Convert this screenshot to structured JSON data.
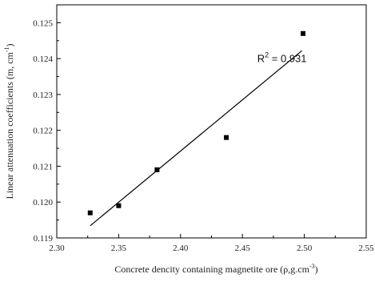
{
  "chart_data": {
    "type": "scatter",
    "title": "",
    "xlabel": "Concrete dencity containing magnetite ore (ρ,g.cm",
    "xlabel_sup": "-3",
    "xlabel_end": ")",
    "ylabel": "Linear attenuation coefficients (m, cm",
    "ylabel_sup": "-1",
    "ylabel_end": ")",
    "xlim": [
      2.3,
      2.55
    ],
    "ylim": [
      0.119,
      0.1255
    ],
    "xticks": [
      2.3,
      2.35,
      2.4,
      2.45,
      2.5,
      2.55
    ],
    "xtick_labels": [
      "2.30",
      "2.35",
      "2.40",
      "2.45",
      "2.50",
      "2.55"
    ],
    "yticks": [
      0.119,
      0.12,
      0.121,
      0.122,
      0.123,
      0.124,
      0.125
    ],
    "ytick_labels": [
      "0.119",
      "0.120",
      "0.121",
      "0.122",
      "0.123",
      "0.124",
      "0.125"
    ],
    "grid": false,
    "series": [
      {
        "x": [
          2.327,
          2.35,
          2.381,
          2.437,
          2.499
        ],
        "y": [
          0.1197,
          0.1199,
          0.1209,
          0.1218,
          0.1247
        ],
        "marker": "square",
        "color": "#000000"
      }
    ],
    "fit_line": {
      "x": [
        2.327,
        2.498
      ],
      "y": [
        0.11934,
        0.12422
      ],
      "color": "#000000"
    },
    "annotation": {
      "prefix": "R",
      "sup": "2",
      "text": " = 0.931",
      "x": 2.462,
      "y": 0.1239
    }
  }
}
